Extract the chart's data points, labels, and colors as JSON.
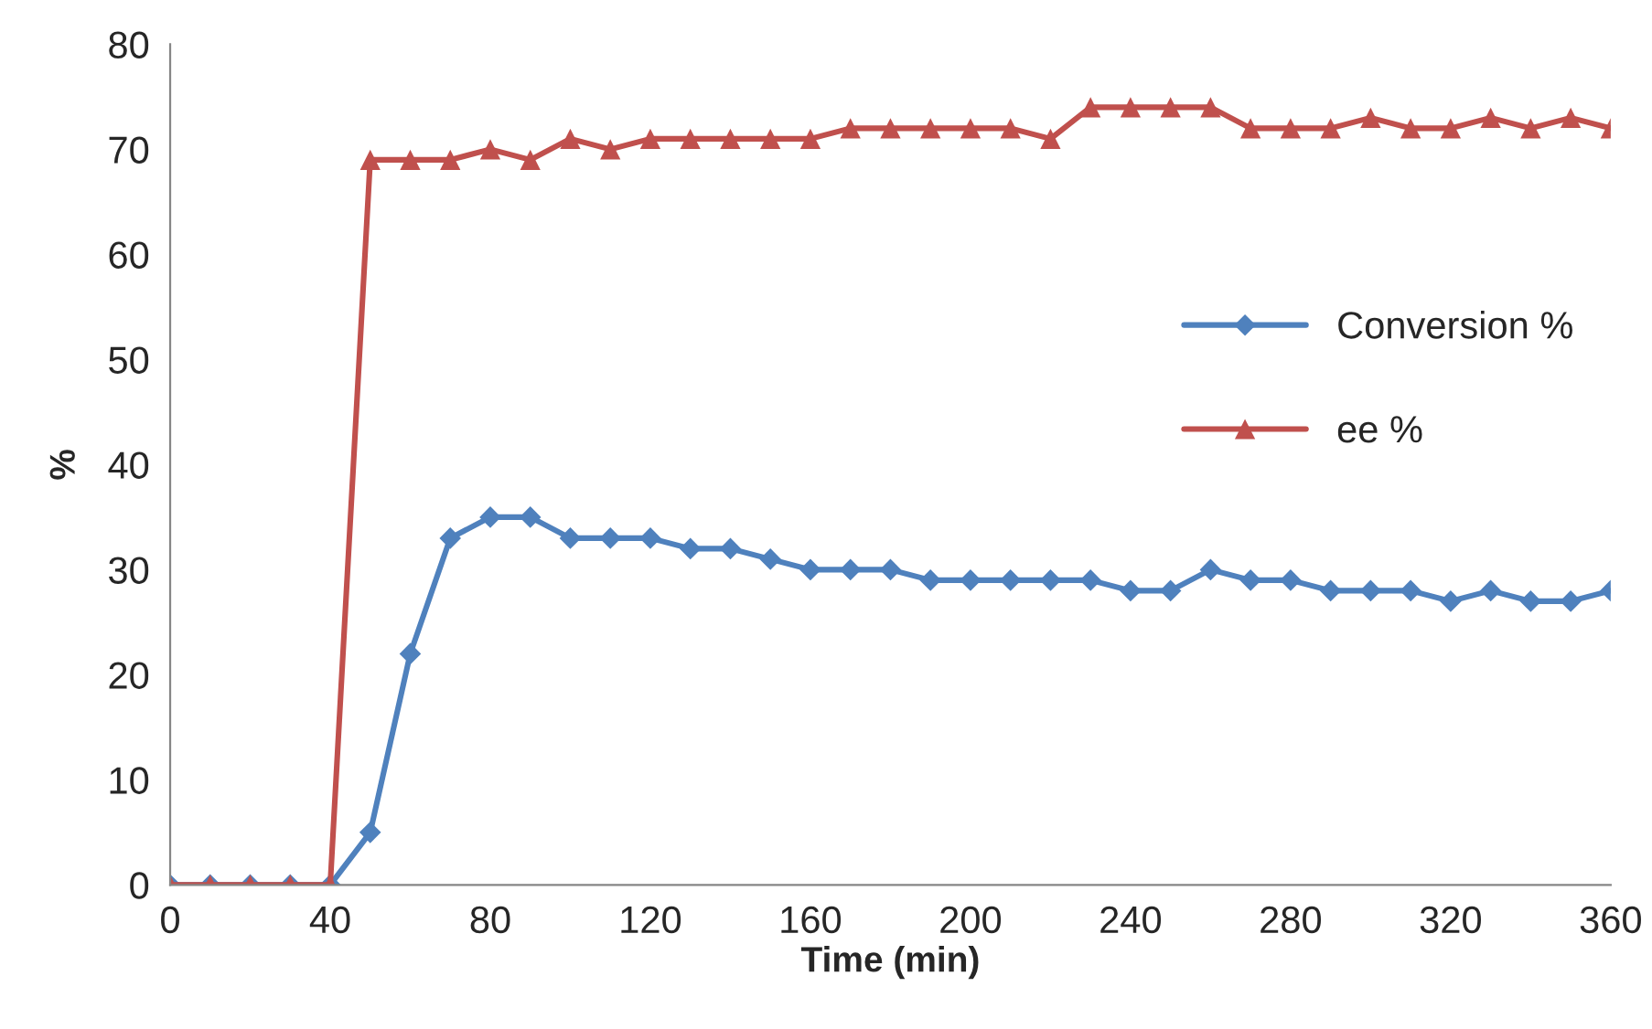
{
  "chart_data": {
    "type": "line",
    "xlabel": "Time (min)",
    "ylabel": "%",
    "x": [
      0,
      10,
      20,
      30,
      40,
      50,
      60,
      70,
      80,
      90,
      100,
      110,
      120,
      130,
      140,
      150,
      160,
      170,
      180,
      190,
      200,
      210,
      220,
      230,
      240,
      250,
      260,
      270,
      280,
      290,
      300,
      310,
      320,
      330,
      340,
      350,
      360
    ],
    "series": [
      {
        "name": "Conversion %",
        "color": "#4f81bd",
        "marker": "diamond",
        "values": [
          0,
          0,
          0,
          0,
          0,
          5,
          22,
          33,
          35,
          35,
          33,
          33,
          33,
          32,
          32,
          31,
          30,
          30,
          30,
          29,
          29,
          29,
          29,
          29,
          28,
          28,
          30,
          29,
          29,
          28,
          28,
          28,
          27,
          28,
          27,
          27,
          28
        ]
      },
      {
        "name": "ee %",
        "color": "#c0504d",
        "marker": "triangle",
        "values": [
          0,
          0,
          0,
          0,
          0,
          69,
          69,
          69,
          70,
          69,
          71,
          70,
          71,
          71,
          71,
          71,
          71,
          72,
          72,
          72,
          72,
          72,
          71,
          74,
          74,
          74,
          74,
          72,
          72,
          72,
          73,
          72,
          72,
          73,
          72,
          73,
          72
        ]
      }
    ],
    "xlim": [
      0,
      360
    ],
    "xticks": [
      0,
      40,
      80,
      120,
      160,
      200,
      240,
      280,
      320,
      360
    ],
    "ylim": [
      0,
      80
    ],
    "yticks": [
      0,
      10,
      20,
      30,
      40,
      50,
      60,
      70,
      80
    ],
    "grid": false,
    "legend": "right",
    "line_style": "solid"
  }
}
